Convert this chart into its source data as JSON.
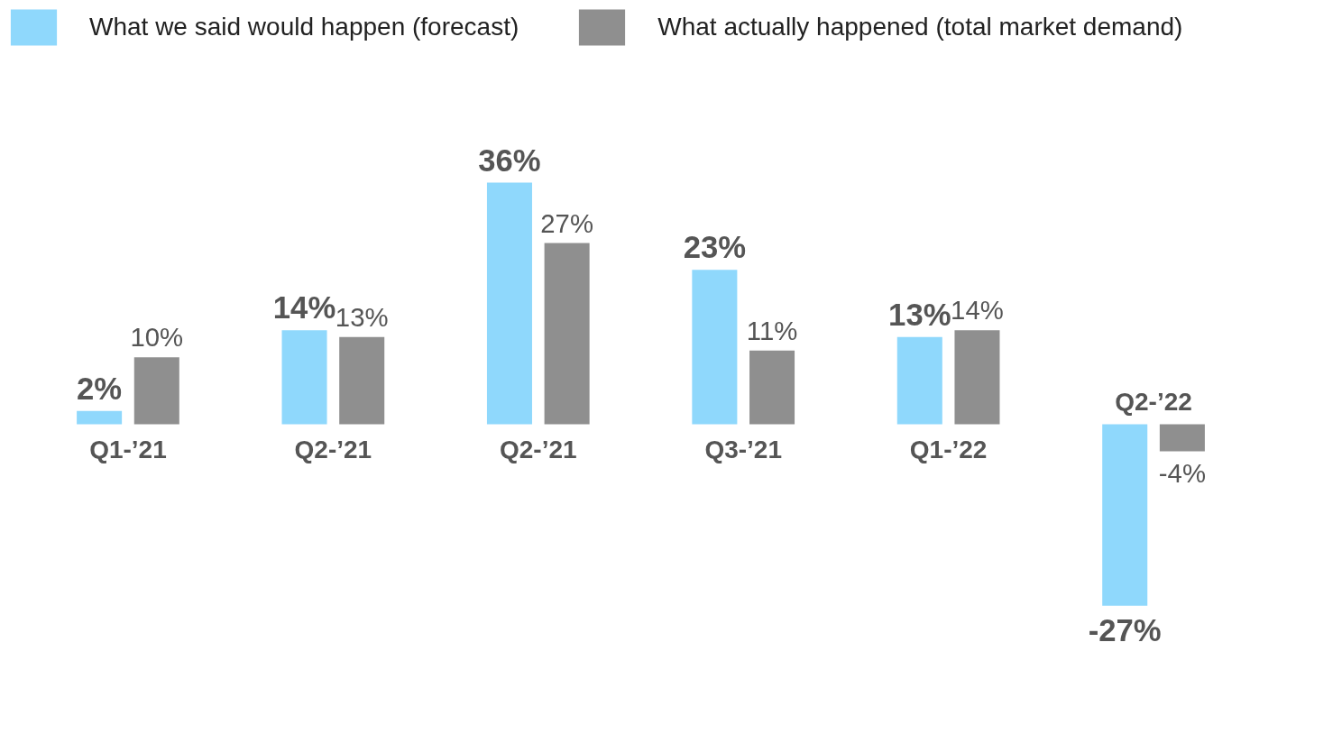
{
  "chart_data": {
    "type": "bar",
    "categories": [
      "Q1-’21",
      "Q2-’21",
      "Q2-’21",
      "Q3-’21",
      "Q1-’22",
      "Q2-’22"
    ],
    "series": [
      {
        "name": "What we said would happen (forecast)",
        "color": "#8fd8fc",
        "values": [
          2,
          14,
          36,
          23,
          13,
          -27
        ],
        "value_labels": [
          "2%",
          "14%",
          "36%",
          "23%",
          "13%",
          "-27%"
        ]
      },
      {
        "name": "What actually happened (total market demand)",
        "color": "#8f8f8f",
        "values": [
          10,
          13,
          27,
          11,
          14,
          -4
        ],
        "value_labels": [
          "10%",
          "13%",
          "27%",
          "11%",
          "14%",
          "-4%"
        ]
      }
    ],
    "legend": "top left",
    "grid": false
  }
}
